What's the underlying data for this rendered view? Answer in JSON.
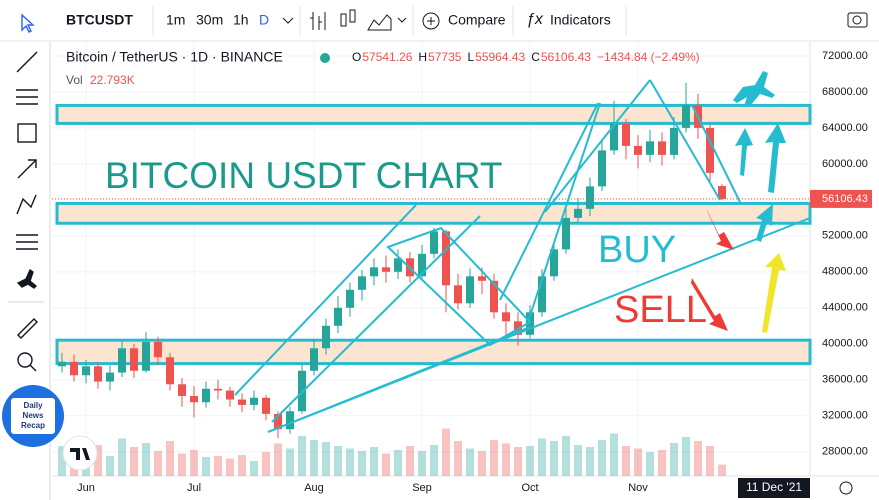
{
  "toolbar": {
    "symbol": "BTCUSDT",
    "intervals": [
      "1m",
      "30m",
      "1h",
      "D"
    ],
    "compare": "Compare",
    "indicators": "Indicators"
  },
  "legend": {
    "symbol": "Bitcoin / TetherUS · 1D · BINANCE",
    "ohlc": [
      {
        "label": "O",
        "value": 57541.26
      },
      {
        "label": "H",
        "value": 57735.0
      },
      {
        "label": "L",
        "value": 55964.43
      },
      {
        "label": "C",
        "value": 56106.43
      }
    ],
    "change": "−1434.84 (−2.49%)",
    "vol_label": "Vol",
    "vol_value": "22.793K"
  },
  "logo": {
    "lines": [
      "Daily",
      "News",
      "Recap"
    ]
  },
  "chart_data": {
    "type": "candlestick",
    "annotations": {
      "title": "BITCOIN USDT CHART",
      "buy": "BUY",
      "sell": "SELL"
    },
    "categories": [
      null,
      null,
      "Jun",
      null,
      null,
      null,
      null,
      null,
      null,
      null,
      null,
      "Jul",
      null,
      null,
      null,
      null,
      null,
      null,
      null,
      null,
      null,
      "Aug",
      null,
      null,
      null,
      null,
      null,
      null,
      null,
      null,
      "Sep",
      null,
      null,
      null,
      null,
      null,
      null,
      null,
      null,
      "Oct",
      null,
      null,
      null,
      null,
      null,
      null,
      null,
      null,
      "Nov",
      null,
      null,
      null,
      null,
      null,
      null,
      null
    ],
    "open": [
      37500,
      38000,
      36500,
      37500,
      35800,
      36800,
      39500,
      37000,
      40200,
      38500,
      35500,
      34200,
      33500,
      35000,
      34800,
      33800,
      33200,
      34000,
      32200,
      30500,
      32500,
      37000,
      39500,
      42000,
      44000,
      46000,
      47500,
      48500,
      48000,
      49500,
      47500,
      50000,
      52500,
      46500,
      44500,
      47500,
      47000,
      43500,
      42500,
      41000,
      43500,
      47500,
      50500,
      54000,
      55000,
      57500,
      61500,
      64500,
      62000,
      61000,
      62500,
      61000,
      64000,
      66500,
      64000,
      57541.26
    ],
    "high": [
      39000,
      38800,
      38200,
      38000,
      37600,
      40300,
      40000,
      41300,
      40800,
      39000,
      36200,
      35300,
      35800,
      36000,
      35200,
      34500,
      34800,
      34300,
      32500,
      33000,
      37800,
      40500,
      42800,
      45300,
      46800,
      48200,
      49500,
      49800,
      50500,
      50200,
      51000,
      52900,
      52700,
      47800,
      48400,
      48500,
      47800,
      44500,
      43500,
      44300,
      48300,
      51400,
      55500,
      56200,
      58500,
      62500,
      67000,
      65000,
      63200,
      63800,
      63500,
      65200,
      69000,
      67800,
      64500,
      57735
    ],
    "low": [
      36800,
      35800,
      35600,
      35000,
      34800,
      36300,
      36200,
      36800,
      37600,
      34800,
      33000,
      31800,
      32900,
      33800,
      33000,
      32400,
      32600,
      31500,
      29500,
      30000,
      32200,
      36500,
      38800,
      41200,
      43000,
      44800,
      46500,
      46800,
      47200,
      46800,
      47000,
      49500,
      43500,
      43800,
      44000,
      45500,
      42800,
      40500,
      39800,
      40600,
      43000,
      47000,
      50000,
      53500,
      54200,
      57000,
      61000,
      60500,
      59500,
      60200,
      59800,
      60500,
      63500,
      62800,
      57800,
      55964.43
    ],
    "close": [
      38000,
      36500,
      37500,
      35800,
      36800,
      39500,
      37000,
      40200,
      38500,
      35500,
      34200,
      33500,
      35000,
      34800,
      33800,
      33200,
      34000,
      32200,
      30500,
      32500,
      37000,
      39500,
      42000,
      44000,
      46000,
      47500,
      48500,
      48000,
      49500,
      47500,
      50000,
      52500,
      46500,
      44500,
      47500,
      47000,
      43500,
      42500,
      41000,
      43500,
      47500,
      50500,
      54000,
      55000,
      57500,
      61500,
      64500,
      62000,
      61000,
      62500,
      61000,
      64000,
      66500,
      64000,
      59000,
      56106.43
    ],
    "volume": [
      60,
      55,
      48,
      62,
      40,
      75,
      58,
      66,
      50,
      70,
      45,
      52,
      38,
      40,
      35,
      42,
      30,
      48,
      65,
      55,
      80,
      72,
      68,
      60,
      55,
      50,
      58,
      45,
      52,
      60,
      50,
      62,
      95,
      70,
      55,
      50,
      72,
      65,
      58,
      60,
      75,
      70,
      80,
      62,
      58,
      72,
      85,
      60,
      55,
      48,
      52,
      66,
      78,
      70,
      60,
      22.793
    ],
    "vol_max": 140,
    "bull_color": "#26a69a",
    "bear_color": "#ef5350",
    "zones": [
      {
        "low": 64500,
        "high": 66500
      },
      {
        "low": 53400,
        "high": 55600
      },
      {
        "low": 37800,
        "high": 40400
      }
    ],
    "ylim": [
      25300,
      73550
    ],
    "yticks": [
      {
        "value": 28000,
        "label": "28000.00"
      },
      {
        "value": 32000,
        "label": "32000.00"
      },
      {
        "value": 36000,
        "label": "36000.00"
      },
      {
        "value": 40000,
        "label": "40000.00"
      },
      {
        "value": 44000,
        "label": "44000.00"
      },
      {
        "value": 48000,
        "label": "48000.00"
      },
      {
        "value": 52000,
        "label": "52000.00"
      },
      {
        "value": 56000,
        "label": "56000.00"
      },
      {
        "value": 60000,
        "label": "60000.00"
      },
      {
        "value": 64000,
        "label": "64000.00"
      },
      {
        "value": 68000,
        "label": "68000.00"
      },
      {
        "value": 72000,
        "label": "72000.00"
      }
    ],
    "last_price": {
      "value": 56106.43,
      "label": "56106.43"
    },
    "date_label": "11 Dec '21",
    "grid": true
  }
}
